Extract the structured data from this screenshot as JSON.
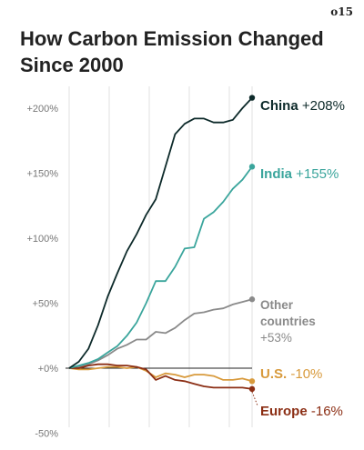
{
  "corner_tag": "o15",
  "chart_data": {
    "type": "line",
    "title": "How Carbon Emission Changed Since 2000",
    "xlabel": "",
    "ylabel": "",
    "ylim": [
      -50,
      220
    ],
    "yticks": [
      "+200%",
      "+150%",
      "+100%",
      "+50%",
      "+0%",
      "-50%"
    ],
    "ytick_values": [
      200,
      150,
      100,
      50,
      0,
      -50
    ],
    "grid": "vertical",
    "x": [
      2000,
      2001,
      2002,
      2003,
      2004,
      2005,
      2006,
      2007,
      2008,
      2009,
      2010,
      2011,
      2012,
      2013,
      2014,
      2015,
      2016,
      2017,
      2018,
      2019
    ],
    "series": [
      {
        "name": "China",
        "label_value": "+208%",
        "color": "#0d2a2a",
        "values": [
          0,
          5,
          15,
          33,
          55,
          73,
          90,
          103,
          118,
          130,
          155,
          180,
          188,
          192,
          192,
          189,
          189,
          191,
          200,
          208
        ]
      },
      {
        "name": "India",
        "label_value": "+155%",
        "color": "#3aa59c",
        "values": [
          0,
          2,
          4,
          7,
          12,
          17,
          25,
          35,
          50,
          67,
          67,
          78,
          92,
          93,
          115,
          120,
          128,
          138,
          145,
          155
        ]
      },
      {
        "name": "Other countries",
        "label_lines": [
          "Other",
          "countries",
          "+53%"
        ],
        "color": "#8a8a8a",
        "values": [
          0,
          1,
          3,
          6,
          10,
          15,
          18,
          22,
          22,
          28,
          27,
          31,
          37,
          42,
          43,
          45,
          46,
          49,
          51,
          53
        ]
      },
      {
        "name": "U.S.",
        "label_value": "-10%",
        "color": "#d89a3c",
        "values": [
          0,
          -1,
          -1,
          0,
          1,
          1,
          0,
          1,
          -2,
          -7,
          -4,
          -5,
          -7,
          -5,
          -5,
          -6,
          -9,
          -9,
          -8,
          -10
        ]
      },
      {
        "name": "Europe",
        "label_value": "-16%",
        "color": "#8b2e14",
        "values": [
          0,
          0,
          2,
          3,
          3,
          2,
          2,
          1,
          -1,
          -9,
          -6,
          -9,
          -10,
          -12,
          -14,
          -15,
          -15,
          -15,
          -15,
          -16
        ]
      }
    ]
  }
}
